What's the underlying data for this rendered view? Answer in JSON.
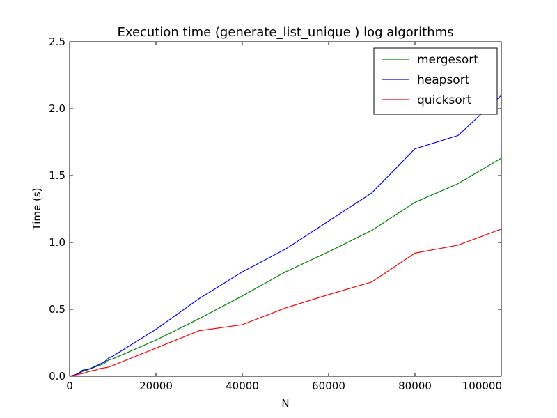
{
  "chart_data": {
    "type": "line",
    "title": "Execution time (generate_list_unique ) log algorithms",
    "xlabel": "N",
    "ylabel": "Time (s)",
    "xlim": [
      0,
      100000
    ],
    "ylim": [
      0.0,
      2.5
    ],
    "xticks": [
      0,
      20000,
      40000,
      60000,
      80000,
      100000
    ],
    "xtick_labels": [
      "0",
      "20000",
      "40000",
      "60000",
      "80000",
      "100000"
    ],
    "yticks": [
      0.0,
      0.5,
      1.0,
      1.5,
      2.0,
      2.5
    ],
    "ytick_labels": [
      "0.0",
      "0.5",
      "1.0",
      "1.5",
      "2.0",
      "2.5"
    ],
    "grid": false,
    "legend_position": "top-right",
    "x": [
      100,
      1000,
      2000,
      3000,
      4000,
      5000,
      6000,
      7000,
      8000,
      9000,
      10000,
      20000,
      30000,
      40000,
      50000,
      60000,
      70000,
      80000,
      90000,
      100000
    ],
    "series": [
      {
        "name": "mergesort",
        "color": "#008000",
        "values": [
          0.0,
          0.008,
          0.018,
          0.035,
          0.045,
          0.058,
          0.07,
          0.082,
          0.095,
          0.12,
          0.13,
          0.27,
          0.43,
          0.6,
          0.78,
          0.93,
          1.09,
          1.3,
          1.44,
          1.63
        ]
      },
      {
        "name": "heapsort",
        "color": "#0000ff",
        "values": [
          0.0,
          0.009,
          0.02,
          0.045,
          0.05,
          0.06,
          0.075,
          0.09,
          0.105,
          0.135,
          0.15,
          0.35,
          0.58,
          0.78,
          0.95,
          1.16,
          1.37,
          1.7,
          1.8,
          2.1
        ]
      },
      {
        "name": "quicksort",
        "color": "#ff0000",
        "values": [
          0.0,
          0.006,
          0.014,
          0.02,
          0.03,
          0.04,
          0.045,
          0.058,
          0.062,
          0.068,
          0.08,
          0.21,
          0.34,
          0.385,
          0.51,
          0.61,
          0.705,
          0.92,
          0.98,
          1.1
        ]
      }
    ]
  }
}
